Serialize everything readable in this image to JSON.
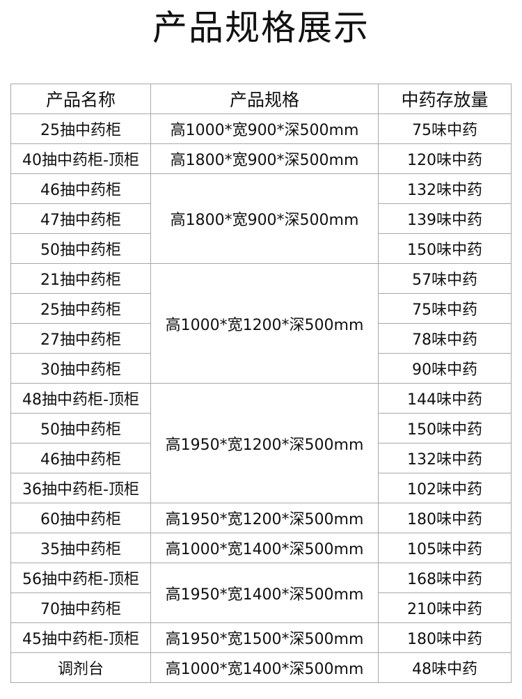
{
  "title": "产品规格展示",
  "headers": [
    "产品名称",
    "产品规格",
    "中药存放量"
  ],
  "rows": [
    {
      "name": "25抽中药柜",
      "spec": "高1000*宽900*深500mm",
      "span": 1,
      "capacity": "75味中药"
    },
    {
      "name": "40抽中药柜-顶柜",
      "spec": "高1800*宽900*深500mm",
      "span": 1,
      "capacity": "120味中药"
    },
    {
      "name": "46抽中药柜",
      "spec": "高1800*宽900*深500mm",
      "span": 3,
      "capacity": "132味中药"
    },
    {
      "name": "47抽中药柜",
      "capacity": "139味中药"
    },
    {
      "name": "50抽中药柜",
      "capacity": "150味中药"
    },
    {
      "name": "21抽中药柜",
      "spec": "高1000*宽1200*深500mm",
      "span": 4,
      "capacity": "57味中药"
    },
    {
      "name": "25抽中药柜",
      "capacity": "75味中药"
    },
    {
      "name": "27抽中药柜",
      "capacity": "78味中药"
    },
    {
      "name": "30抽中药柜",
      "capacity": "90味中药"
    },
    {
      "name": "48抽中药柜-顶柜",
      "spec": "高1950*宽1200*深500mm",
      "span": 4,
      "capacity": "144味中药"
    },
    {
      "name": "50抽中药柜",
      "capacity": "150味中药"
    },
    {
      "name": "46抽中药柜",
      "capacity": "132味中药"
    },
    {
      "name": "36抽中药柜-顶柜",
      "capacity": "102味中药"
    },
    {
      "name": "60抽中药柜",
      "spec": "高1950*宽1200*深500mm",
      "span": 1,
      "capacity": "180味中药"
    },
    {
      "name": "35抽中药柜",
      "spec": "高1000*宽1400*深500mm",
      "span": 1,
      "capacity": "105味中药"
    },
    {
      "name": "56抽中药柜-顶柜",
      "spec": "高1950*宽1400*深500mm",
      "span": 2,
      "capacity": "168味中药"
    },
    {
      "name": "70抽中药柜",
      "capacity": "210味中药"
    },
    {
      "name": "45抽中药柜-顶柜",
      "spec": "高1950*宽1500*深500mm",
      "span": 1,
      "capacity": "180味中药"
    },
    {
      "name": "调剂台",
      "spec": "高1000*宽1400*深500mm",
      "span": 1,
      "capacity": "48味中药"
    }
  ]
}
